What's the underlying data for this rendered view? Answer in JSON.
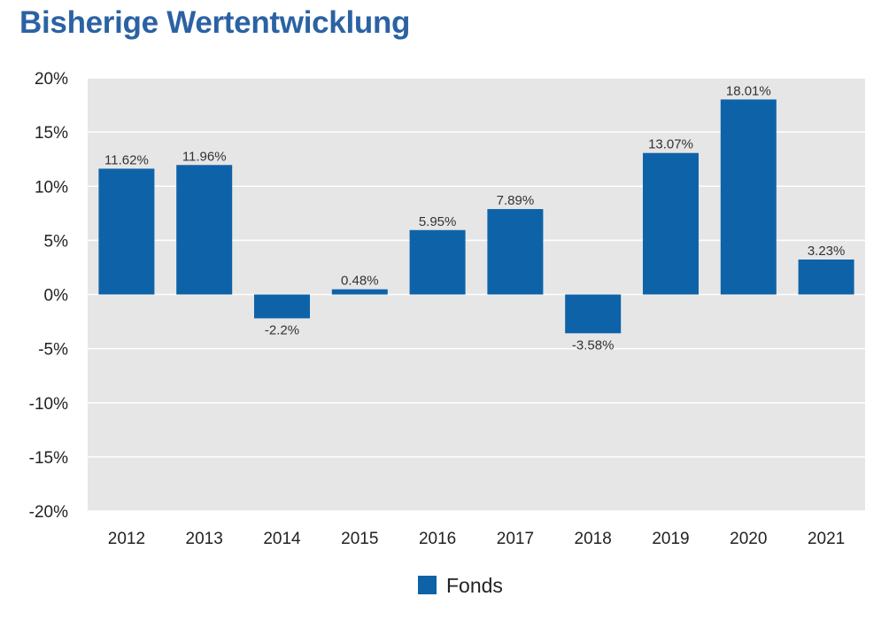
{
  "header": {
    "title": "Bisherige Wertentwicklung"
  },
  "chart_data": {
    "type": "bar",
    "categories": [
      "2012",
      "2013",
      "2014",
      "2015",
      "2016",
      "2017",
      "2018",
      "2019",
      "2020",
      "2021"
    ],
    "series": [
      {
        "name": "Fonds",
        "values": [
          11.62,
          11.96,
          -2.2,
          0.48,
          5.95,
          7.89,
          -3.58,
          13.07,
          18.01,
          3.23
        ],
        "labels": [
          "11.62%",
          "11.96%",
          "-2.2%",
          "0.48%",
          "5.95%",
          "7.89%",
          "-3.58%",
          "13.07%",
          "18.01%",
          "3.23%"
        ]
      }
    ],
    "ylim": [
      -20,
      20
    ],
    "yticks": [
      20,
      15,
      10,
      5,
      0,
      -5,
      -10,
      -15,
      -20
    ],
    "ytick_labels": [
      "20%",
      "15%",
      "10%",
      "5%",
      "0%",
      "-5%",
      "-10%",
      "-15%",
      "-20%"
    ],
    "grid": true,
    "legend_position": "bottom-center",
    "colors": {
      "bar": "#0e63a8",
      "plot_background": "#e6e6e6",
      "grid": "#ffffff",
      "title": "#2b62a3"
    }
  }
}
